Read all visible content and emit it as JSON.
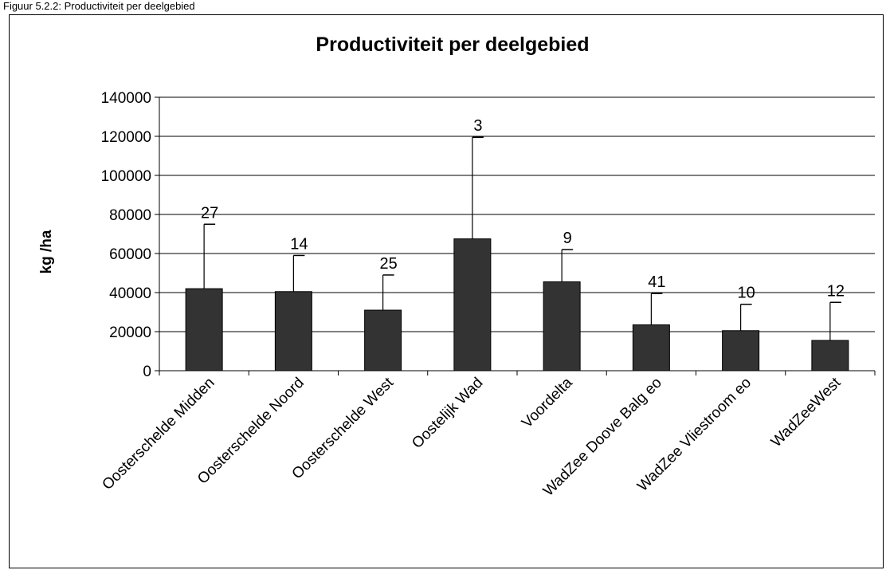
{
  "caption": "Figuur 5.2.2: Productiviteit per deelgebied",
  "colors": {
    "bar": "#333333",
    "axis": "#000000",
    "grid": "#000000"
  },
  "chart_data": {
    "type": "bar",
    "title": "Productiviteit per deelgebied",
    "xlabel": "",
    "ylabel": "kg /ha",
    "ylim": [
      0,
      140000
    ],
    "yticks": [
      0,
      20000,
      40000,
      60000,
      80000,
      100000,
      120000,
      140000
    ],
    "grid": true,
    "categories": [
      "Oosterschelde Midden",
      "Oosterschelde Noord",
      "Oosterschelde West",
      "Oostelijk Wad",
      "Voordelta",
      "WadZee Doove Balg eo",
      "WadZee Vliestroom eo",
      "WadZeeWest"
    ],
    "values": [
      42000,
      40500,
      31000,
      67500,
      45500,
      23500,
      20500,
      15500
    ],
    "error_upper": [
      75000,
      59000,
      49000,
      119500,
      62000,
      39500,
      34000,
      35000
    ],
    "data_labels": [
      "27",
      "14",
      "25",
      "3",
      "9",
      "41",
      "10",
      "12"
    ]
  }
}
